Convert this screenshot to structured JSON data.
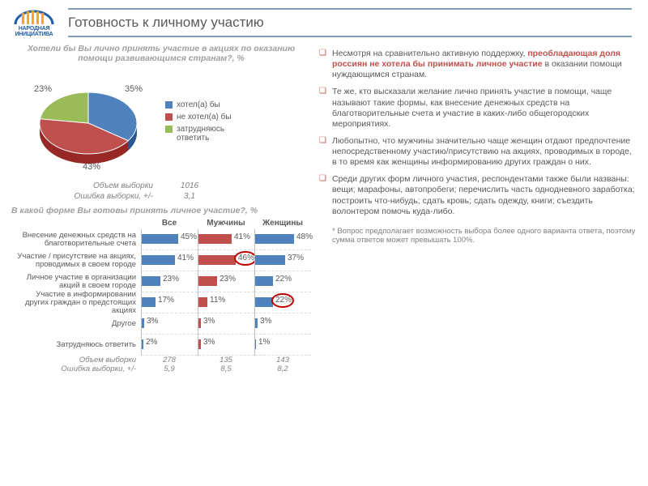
{
  "brand": {
    "line1": "НАРОДНАЯ",
    "line2": "ИНИЦИАТИВА",
    "color": "#1f5ea8"
  },
  "title": "Готовность к личному участию",
  "pie": {
    "title": "Хотели бы Вы лично принять участие в акциях по оказанию помощи развивающимся странам?, %",
    "slices": [
      {
        "label": "хотел(а) бы",
        "value": 35,
        "color": "#4f81bd"
      },
      {
        "label": "не хотел(а) бы",
        "value": 43,
        "color": "#c0504d"
      },
      {
        "label": "затрудняюсь ответить",
        "value": 23,
        "color": "#9bbb59"
      }
    ],
    "value_labels": [
      "35%",
      "43%",
      "23%"
    ],
    "sample_label": "Объем выборки",
    "sample_value": "1016",
    "error_label": "Ошибка выборки, +/-",
    "error_value": "3,1"
  },
  "bars": {
    "title": "В какой форме Вы готовы принять личное участие?, %",
    "columns": [
      "Все",
      "Мужчины",
      "Женщины"
    ],
    "col_colors": [
      "#4f81bd",
      "#c0504d",
      "#4f81bd"
    ],
    "max": 50,
    "rows": [
      {
        "label": "Внесение денежных средств на благотворительные счета",
        "v": [
          45,
          41,
          48
        ]
      },
      {
        "label": "Участие / присутствие на акциях, проводимых в своем городе",
        "v": [
          41,
          46,
          37
        ]
      },
      {
        "label": "Личное участие в организации акций в своем городе",
        "v": [
          23,
          23,
          22
        ]
      },
      {
        "label": "Участие в информировании других граждан о предстоящих акциях",
        "v": [
          17,
          11,
          22
        ]
      },
      {
        "label": "Другое",
        "v": [
          3,
          3,
          3
        ]
      },
      {
        "label": "Затрудняюсь ответить",
        "v": [
          2,
          3,
          1
        ]
      }
    ],
    "highlights": [
      {
        "row": 1,
        "col": 1
      },
      {
        "row": 3,
        "col": 2
      }
    ],
    "meta": {
      "sample_label": "Объем выборки",
      "sample": [
        "278",
        "135",
        "143"
      ],
      "error_label": "Ошибка выборки, +/-",
      "error": [
        "5,9",
        "8,5",
        "8,2"
      ]
    }
  },
  "bullets": [
    {
      "pre": "Несмотря на сравнительно активную поддержку, ",
      "em": "преобладающая доля россиян не хотела бы принимать личное участие",
      "post": " в оказании помощи нуждающимся странам."
    },
    {
      "pre": "Те же, кто высказали желание лично принять участие в помощи, чаще называют такие формы, как внесение денежных средств на благотворительные счета и участие в каких-либо общегородских мероприятиях.",
      "em": "",
      "post": ""
    },
    {
      "pre": "Любопытно, что мужчины значительно чаще женщин отдают предпочтение непосредственному участию/присутствию на акциях, проводимых в городе, в то время как женщины информированию других граждан о них.",
      "em": "",
      "post": ""
    },
    {
      "pre": "Среди других форм личного участия, респондентами также были названы: вещи; марафоны, автопробеги; перечислить часть однодневного заработка; построить что-нибудь; сдать кровь; сдать одежду, книги; съездить волонтером помочь куда-либо.",
      "em": "",
      "post": ""
    }
  ],
  "footnote": "* Вопрос предполагает возможность выбора более одного варианта ответа, поэтому сумма ответов может превышать 100%."
}
